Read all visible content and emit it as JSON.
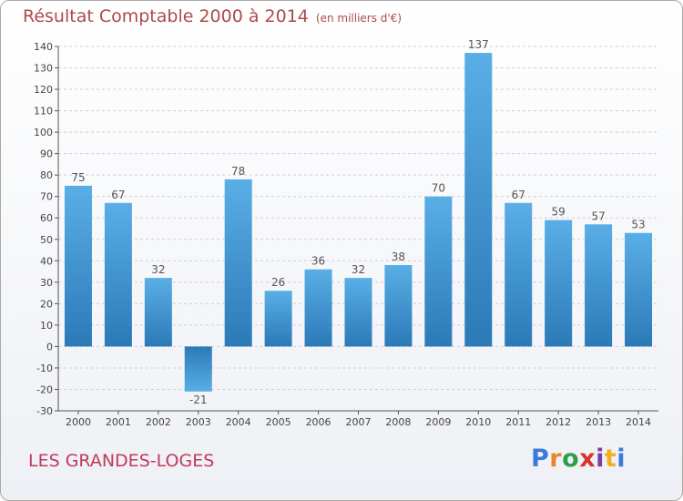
{
  "title": "Résultat Comptable 2000 à 2014",
  "subtitle": "(en milliers d'€)",
  "location": "LES GRANDES-LOGES",
  "logo": {
    "text": "Proxiti",
    "letter_colors": [
      "#3a7bd5",
      "#e8862a",
      "#2e9e4d",
      "#d8342f",
      "#7a3fa5",
      "#f0b020",
      "#3a7bd5"
    ]
  },
  "colors": {
    "bar_light": "#5aaee6",
    "bar_dark": "#2a7ab8",
    "title": "#ad4a4a",
    "location": "#c03a5a"
  },
  "chart_data": {
    "type": "bar",
    "categories": [
      "2000",
      "2001",
      "2002",
      "2003",
      "2004",
      "2005",
      "2006",
      "2007",
      "2008",
      "2009",
      "2010",
      "2011",
      "2012",
      "2013",
      "2014"
    ],
    "values": [
      75,
      67,
      32,
      -21,
      78,
      26,
      36,
      32,
      38,
      70,
      137,
      67,
      59,
      57,
      53
    ],
    "title": "Résultat Comptable 2000 à 2014",
    "subtitle": "(en milliers d'€)",
    "ylim": [
      -30,
      140
    ],
    "yticks": [
      -30,
      -20,
      -10,
      0,
      10,
      20,
      30,
      40,
      50,
      60,
      70,
      80,
      90,
      100,
      110,
      120,
      130,
      140
    ],
    "grid": true,
    "legend": "none"
  }
}
